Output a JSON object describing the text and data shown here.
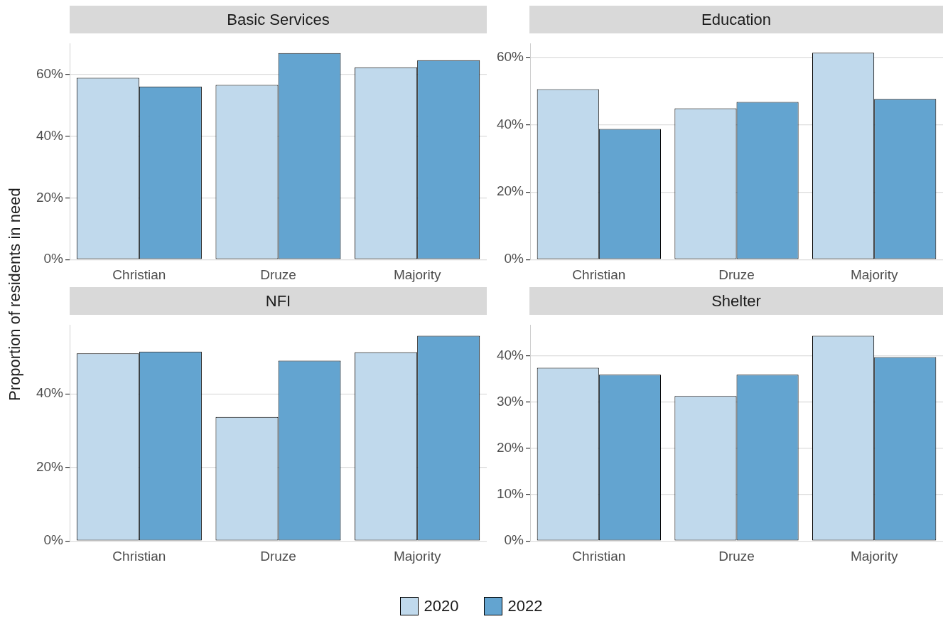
{
  "chart_data": [
    {
      "type": "bar",
      "title": "Basic Services",
      "ylabel": "Proportion of residents in need",
      "legend": "bottom",
      "grid": "y",
      "categories": [
        "Christian",
        "Druze",
        "Majority"
      ],
      "ylim": [
        0,
        70
      ],
      "yticks": [
        {
          "value": 0,
          "label": "0%"
        },
        {
          "value": 20,
          "label": "20%"
        },
        {
          "value": 40,
          "label": "40%"
        },
        {
          "value": 60,
          "label": "60%"
        }
      ],
      "series": [
        {
          "name": "2020",
          "color": "#c0d9ec",
          "values": [
            58.9,
            56.6,
            62.3
          ]
        },
        {
          "name": "2022",
          "color": "#63a4d0",
          "values": [
            56.1,
            66.9,
            64.6
          ]
        }
      ]
    },
    {
      "type": "bar",
      "title": "Education",
      "grid": "y",
      "categories": [
        "Christian",
        "Druze",
        "Majority"
      ],
      "ylim": [
        0,
        64
      ],
      "yticks": [
        {
          "value": 0,
          "label": "0%"
        },
        {
          "value": 20,
          "label": "20%"
        },
        {
          "value": 40,
          "label": "40%"
        },
        {
          "value": 60,
          "label": "60%"
        }
      ],
      "series": [
        {
          "color": "#c0d9ec",
          "values": [
            50.5,
            44.8,
            61.3
          ]
        },
        {
          "color": "#63a4d0",
          "values": [
            38.7,
            46.7,
            47.6
          ]
        }
      ]
    },
    {
      "type": "bar",
      "title": "NFI",
      "grid": "y",
      "categories": [
        "Christian",
        "Druze",
        "Majority"
      ],
      "ylim": [
        0,
        58.7
      ],
      "yticks": [
        {
          "value": 0,
          "label": "0%"
        },
        {
          "value": 20,
          "label": "20%"
        },
        {
          "value": 40,
          "label": "40%"
        }
      ],
      "series": [
        {
          "color": "#c0d9ec",
          "values": [
            51.0,
            33.7,
            51.3
          ]
        },
        {
          "color": "#63a4d0",
          "values": [
            51.5,
            49.0,
            55.8
          ]
        }
      ]
    },
    {
      "type": "bar",
      "title": "Shelter",
      "grid": "y",
      "categories": [
        "Christian",
        "Druze",
        "Majority"
      ],
      "ylim": [
        0,
        46.6
      ],
      "yticks": [
        {
          "value": 0,
          "label": "0%"
        },
        {
          "value": 10,
          "label": "10%"
        },
        {
          "value": 20,
          "label": "20%"
        },
        {
          "value": 30,
          "label": "30%"
        },
        {
          "value": 40,
          "label": "40%"
        }
      ],
      "series": [
        {
          "color": "#c0d9ec",
          "values": [
            37.4,
            31.3,
            44.3
          ]
        },
        {
          "color": "#63a4d0",
          "values": [
            35.9,
            35.9,
            39.7
          ]
        }
      ]
    }
  ]
}
